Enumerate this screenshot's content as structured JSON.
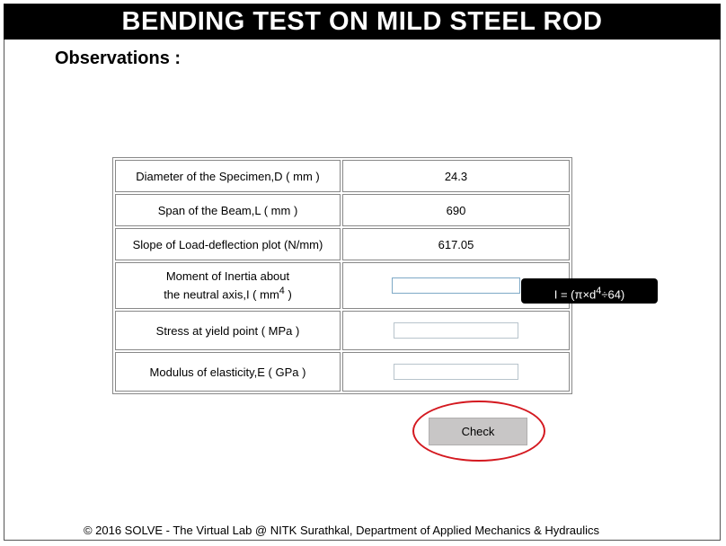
{
  "header": {
    "title": "BENDING TEST ON MILD STEEL ROD"
  },
  "section": {
    "title": "Observations :"
  },
  "table": {
    "rows": [
      {
        "label": "Diameter of the Specimen,D ( mm )",
        "value": "24.3"
      },
      {
        "label": "Span of the Beam,L ( mm )",
        "value": "690"
      },
      {
        "label": "Slope of Load-deflection plot (N/mm)",
        "value": "617.05"
      },
      {
        "label_line1": "Moment of Inertia about",
        "label_line2": "the neutral axis,I ( mm",
        "label_sup": "4",
        "label_end": " )",
        "input_value": ""
      },
      {
        "label": "Stress at yield point ( MPa )",
        "input_value": ""
      },
      {
        "label": "Modulus of elasticity,E ( GPa )",
        "input_value": ""
      }
    ]
  },
  "tooltip": {
    "text_pre": "I = (π×d",
    "text_sup": "4",
    "text_post": "÷64)"
  },
  "check_button": {
    "label": "Check",
    "highlight_color": "#d41920"
  },
  "footer": {
    "text": "© 2016 SOLVE - The Virtual Lab @ NITK Surathkal, Department of Applied Mechanics & Hydraulics"
  }
}
